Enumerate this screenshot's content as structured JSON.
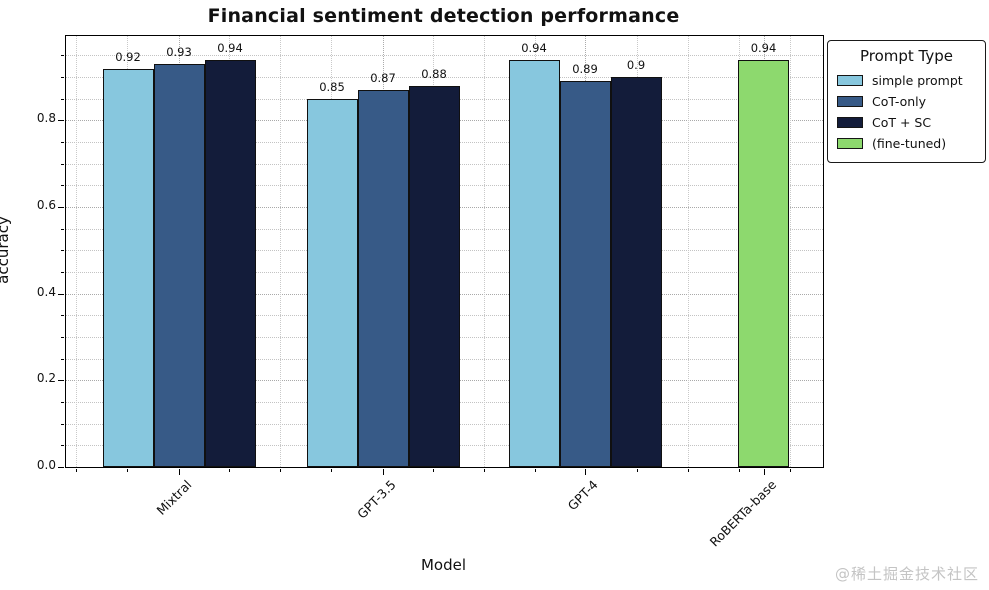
{
  "chart_data": {
    "type": "bar",
    "title": "Financial sentiment detection performance",
    "xlabel": "Model",
    "ylabel": "accuracy",
    "ylim": [
      0,
      0.995
    ],
    "yticks": [
      0.0,
      0.2,
      0.4,
      0.6,
      0.8
    ],
    "y_minor_step": 0.05,
    "grid": "dotted, major and minor, both axes",
    "legend": {
      "title": "Prompt Type",
      "position": "outside-top-right"
    },
    "categories": [
      "Mixtral",
      "GPT-3.5",
      "GPT-4",
      "RoBERTa-base"
    ],
    "series": [
      {
        "name": "simple prompt",
        "color": "#87c7de",
        "values": [
          0.92,
          0.85,
          0.94,
          null
        ]
      },
      {
        "name": "CoT-only",
        "color": "#375a87",
        "values": [
          0.93,
          0.87,
          0.89,
          null
        ]
      },
      {
        "name": "CoT + SC",
        "color": "#131c3a",
        "values": [
          0.94,
          0.88,
          0.9,
          null
        ]
      },
      {
        "name": "(fine-tuned)",
        "color": "#8dd96e",
        "values": [
          null,
          null,
          null,
          0.94
        ]
      }
    ],
    "bar_labels": true
  },
  "watermark": "@稀土掘金技术社区"
}
